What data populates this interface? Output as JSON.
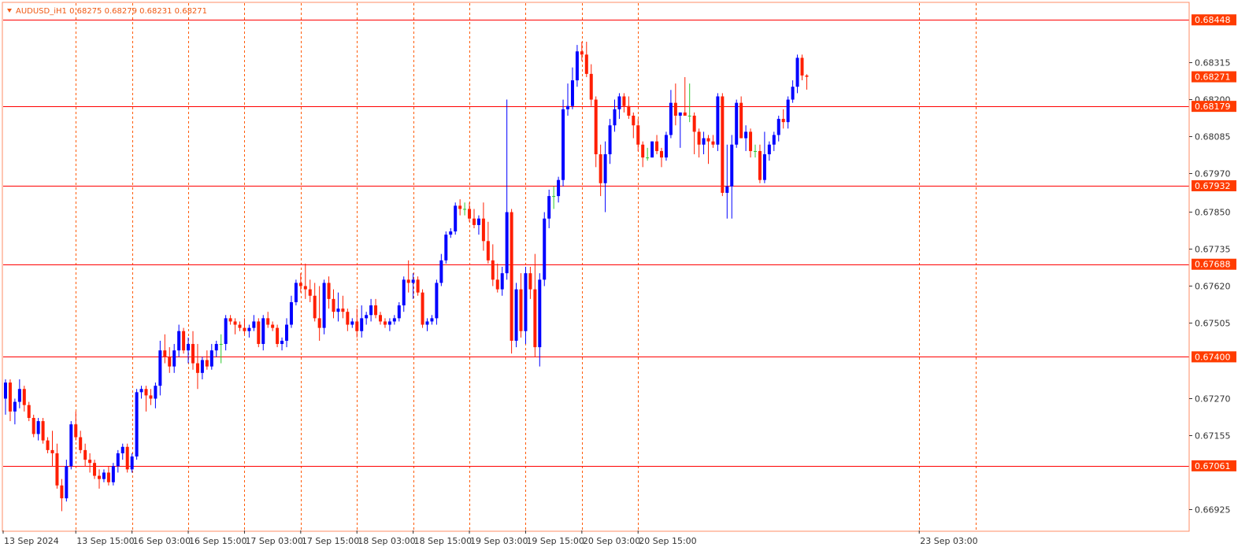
{
  "header": {
    "title": "AUDUSD_iH1  0.68275 0.68279 0.68231 0.68271"
  },
  "colors": {
    "bull": "#0000ff",
    "bear": "#ff1e00",
    "doji": "#2ec82e",
    "grid": "#ff5a00",
    "level": "#ff0000",
    "tag_bg": "#ff3c00",
    "frame": "#ff8c66"
  },
  "chart_data": {
    "type": "candlestick",
    "symbol": "AUDUSD_i",
    "timeframe": "H1",
    "last_bar": {
      "open": 0.68275,
      "high": 0.68279,
      "low": 0.68231,
      "close": 0.68271
    },
    "ylim": [
      0.6686,
      0.685
    ],
    "y_ticks": [
      "0.68315",
      "0.68200",
      "0.68085",
      "0.67970",
      "0.67850",
      "0.67735",
      "0.67620",
      "0.67505",
      "0.67270",
      "0.67155",
      "0.66925"
    ],
    "x_ticks": [
      "13 Sep 2024",
      "13 Sep 15:00",
      "16 Sep 03:00",
      "16 Sep 15:00",
      "17 Sep 03:00",
      "17 Sep 15:00",
      "18 Sep 03:00",
      "18 Sep 15:00",
      "19 Sep 03:00",
      "19 Sep 15:00",
      "20 Sep 03:00",
      "20 Sep 15:00",
      "23 Sep 03:00"
    ],
    "x_gridlines": [
      "13 Sep 15:00",
      "16 Sep 03:00",
      "16 Sep 15:00",
      "17 Sep 03:00",
      "17 Sep 15:00",
      "18 Sep 03:00",
      "18 Sep 15:00",
      "19 Sep 03:00",
      "19 Sep 15:00",
      "20 Sep 03:00",
      "20 Sep 15:00",
      "23 Sep 03:00",
      "23 Sep 15:00"
    ],
    "levels": [
      "0.68448",
      "0.68179",
      "0.67932",
      "0.67688",
      "0.67400",
      "0.67061"
    ],
    "current_price": "0.68271",
    "grid": "vertical dashed",
    "candles": [
      [
        0.6727,
        0.6733,
        0.6722,
        0.6732
      ],
      [
        0.6732,
        0.6733,
        0.672,
        0.6723
      ],
      [
        0.6723,
        0.6727,
        0.6719,
        0.6726
      ],
      [
        0.6726,
        0.6733,
        0.6724,
        0.673
      ],
      [
        0.673,
        0.6731,
        0.6723,
        0.6725
      ],
      [
        0.6725,
        0.6726,
        0.672,
        0.6721
      ],
      [
        0.6721,
        0.6722,
        0.6715,
        0.6716
      ],
      [
        0.6716,
        0.6721,
        0.6714,
        0.672
      ],
      [
        0.672,
        0.6721,
        0.6713,
        0.6714
      ],
      [
        0.6714,
        0.6715,
        0.671,
        0.6711
      ],
      [
        0.6711,
        0.6717,
        0.6706,
        0.671
      ],
      [
        0.671,
        0.6713,
        0.6699,
        0.67
      ],
      [
        0.67,
        0.6702,
        0.6692,
        0.6696
      ],
      [
        0.6696,
        0.6708,
        0.6695,
        0.6706
      ],
      [
        0.6706,
        0.672,
        0.6705,
        0.6719
      ],
      [
        0.6719,
        0.6723,
        0.6714,
        0.6715
      ],
      [
        0.6715,
        0.6717,
        0.671,
        0.6711
      ],
      [
        0.6711,
        0.6713,
        0.6706,
        0.6708
      ],
      [
        0.6708,
        0.671,
        0.6704,
        0.6707
      ],
      [
        0.6707,
        0.6708,
        0.6702,
        0.6703
      ],
      [
        0.6703,
        0.6705,
        0.6699,
        0.6702
      ],
      [
        0.6702,
        0.6705,
        0.6701,
        0.6704
      ],
      [
        0.6704,
        0.6706,
        0.67,
        0.6701
      ],
      [
        0.6701,
        0.6707,
        0.67,
        0.6706
      ],
      [
        0.6706,
        0.6711,
        0.6704,
        0.671
      ],
      [
        0.671,
        0.6713,
        0.6708,
        0.6712
      ],
      [
        0.6712,
        0.6713,
        0.6704,
        0.6705
      ],
      [
        0.6705,
        0.671,
        0.6704,
        0.6709
      ],
      [
        0.6709,
        0.673,
        0.6708,
        0.6729
      ],
      [
        0.6729,
        0.6731,
        0.6727,
        0.673
      ],
      [
        0.673,
        0.6731,
        0.6723,
        0.6728
      ],
      [
        0.6728,
        0.673,
        0.6725,
        0.6727
      ],
      [
        0.6727,
        0.6732,
        0.6724,
        0.6731
      ],
      [
        0.6731,
        0.6745,
        0.6728,
        0.6742
      ],
      [
        0.6742,
        0.6747,
        0.6738,
        0.674
      ],
      [
        0.674,
        0.6743,
        0.6735,
        0.6737
      ],
      [
        0.6737,
        0.6744,
        0.6735,
        0.6742
      ],
      [
        0.6742,
        0.675,
        0.674,
        0.6748
      ],
      [
        0.6748,
        0.6749,
        0.6741,
        0.6742
      ],
      [
        0.6742,
        0.6746,
        0.6738,
        0.6744
      ],
      [
        0.6744,
        0.6748,
        0.6736,
        0.6738
      ],
      [
        0.6738,
        0.6744,
        0.673,
        0.6735
      ],
      [
        0.6735,
        0.674,
        0.6733,
        0.6739
      ],
      [
        0.6739,
        0.6742,
        0.6736,
        0.6737
      ],
      [
        0.6737,
        0.6744,
        0.6736,
        0.6742
      ],
      [
        0.6742,
        0.6745,
        0.674,
        0.6744
      ],
      [
        0.6744,
        0.6747,
        0.6738,
        0.6744
      ],
      [
        0.6744,
        0.6753,
        0.6742,
        0.6752
      ],
      [
        0.6752,
        0.6753,
        0.675,
        0.6751
      ],
      [
        0.6751,
        0.6752,
        0.6747,
        0.675
      ],
      [
        0.675,
        0.6751,
        0.6748,
        0.6749
      ],
      [
        0.6749,
        0.6752,
        0.6747,
        0.6748
      ],
      [
        0.6748,
        0.675,
        0.6746,
        0.6749
      ],
      [
        0.6749,
        0.6753,
        0.6748,
        0.6751
      ],
      [
        0.6751,
        0.6752,
        0.6743,
        0.6744
      ],
      [
        0.6744,
        0.6753,
        0.6742,
        0.6752
      ],
      [
        0.6752,
        0.6754,
        0.6749,
        0.675
      ],
      [
        0.675,
        0.6751,
        0.6748,
        0.6749
      ],
      [
        0.6749,
        0.675,
        0.6743,
        0.6744
      ],
      [
        0.6744,
        0.6746,
        0.6742,
        0.6745
      ],
      [
        0.6745,
        0.6752,
        0.6743,
        0.675
      ],
      [
        0.675,
        0.6759,
        0.6749,
        0.6757
      ],
      [
        0.6757,
        0.6764,
        0.6756,
        0.6763
      ],
      [
        0.6763,
        0.6766,
        0.676,
        0.6762
      ],
      [
        0.6762,
        0.6769,
        0.6758,
        0.6761
      ],
      [
        0.6761,
        0.6764,
        0.6757,
        0.6759
      ],
      [
        0.6759,
        0.6763,
        0.6751,
        0.6752
      ],
      [
        0.6752,
        0.6762,
        0.6745,
        0.6749
      ],
      [
        0.6749,
        0.6764,
        0.6747,
        0.6763
      ],
      [
        0.6763,
        0.6765,
        0.6755,
        0.6758
      ],
      [
        0.6758,
        0.6761,
        0.6752,
        0.6754
      ],
      [
        0.6754,
        0.676,
        0.6751,
        0.6755
      ],
      [
        0.6755,
        0.6759,
        0.6752,
        0.6754
      ],
      [
        0.6754,
        0.6755,
        0.6748,
        0.675
      ],
      [
        0.675,
        0.6752,
        0.6749,
        0.6751
      ],
      [
        0.6751,
        0.6755,
        0.6746,
        0.6748
      ],
      [
        0.6748,
        0.6756,
        0.6746,
        0.6752
      ],
      [
        0.6752,
        0.6754,
        0.675,
        0.6753
      ],
      [
        0.6753,
        0.6758,
        0.6751,
        0.6756
      ],
      [
        0.6756,
        0.6758,
        0.6752,
        0.6753
      ],
      [
        0.6753,
        0.6754,
        0.675,
        0.6751
      ],
      [
        0.6751,
        0.6752,
        0.6749,
        0.675
      ],
      [
        0.675,
        0.6752,
        0.6748,
        0.6751
      ],
      [
        0.6751,
        0.6753,
        0.675,
        0.6752
      ],
      [
        0.6752,
        0.6757,
        0.6751,
        0.6756
      ],
      [
        0.6756,
        0.6765,
        0.6754,
        0.6764
      ],
      [
        0.6764,
        0.677,
        0.676,
        0.6763
      ],
      [
        0.6763,
        0.6766,
        0.6758,
        0.6764
      ],
      [
        0.6764,
        0.6765,
        0.6759,
        0.676
      ],
      [
        0.676,
        0.6761,
        0.6749,
        0.675
      ],
      [
        0.675,
        0.6752,
        0.6748,
        0.6751
      ],
      [
        0.6751,
        0.6753,
        0.675,
        0.6752
      ],
      [
        0.6752,
        0.6764,
        0.675,
        0.6763
      ],
      [
        0.6763,
        0.6772,
        0.6762,
        0.677
      ],
      [
        0.677,
        0.6779,
        0.6769,
        0.6778
      ],
      [
        0.6778,
        0.678,
        0.6777,
        0.6779
      ],
      [
        0.6779,
        0.6788,
        0.6778,
        0.6787
      ],
      [
        0.6787,
        0.6789,
        0.6784,
        0.6786
      ],
      [
        0.6786,
        0.6788,
        0.6784,
        0.6786
      ],
      [
        0.6786,
        0.6788,
        0.6782,
        0.6783
      ],
      [
        0.6783,
        0.6786,
        0.678,
        0.6781
      ],
      [
        0.6781,
        0.6784,
        0.6778,
        0.6783
      ],
      [
        0.6783,
        0.6788,
        0.6773,
        0.6776
      ],
      [
        0.6776,
        0.6782,
        0.6769,
        0.677
      ],
      [
        0.677,
        0.6775,
        0.6762,
        0.6764
      ],
      [
        0.6764,
        0.6769,
        0.676,
        0.6761
      ],
      [
        0.6761,
        0.6768,
        0.6759,
        0.6766
      ],
      [
        0.6766,
        0.682,
        0.6764,
        0.6785
      ],
      [
        0.6785,
        0.6786,
        0.6741,
        0.6745
      ],
      [
        0.6745,
        0.6763,
        0.6743,
        0.6761
      ],
      [
        0.6761,
        0.6766,
        0.6746,
        0.6748
      ],
      [
        0.6748,
        0.6768,
        0.6744,
        0.6766
      ],
      [
        0.6766,
        0.6768,
        0.6758,
        0.6761
      ],
      [
        0.6761,
        0.6772,
        0.674,
        0.6743
      ],
      [
        0.6743,
        0.6766,
        0.6737,
        0.6764
      ],
      [
        0.6764,
        0.6785,
        0.6762,
        0.6783
      ],
      [
        0.6783,
        0.6792,
        0.678,
        0.679
      ],
      [
        0.679,
        0.6793,
        0.6786,
        0.679
      ],
      [
        0.679,
        0.6796,
        0.6788,
        0.6795
      ],
      [
        0.6795,
        0.682,
        0.6793,
        0.6817
      ],
      [
        0.6817,
        0.6825,
        0.6815,
        0.6818
      ],
      [
        0.6818,
        0.683,
        0.6817,
        0.6826
      ],
      [
        0.6826,
        0.6837,
        0.6824,
        0.6835
      ],
      [
        0.6835,
        0.6838,
        0.6832,
        0.6834
      ],
      [
        0.6834,
        0.6838,
        0.6827,
        0.6828
      ],
      [
        0.6828,
        0.6831,
        0.6818,
        0.682
      ],
      [
        0.682,
        0.6821,
        0.6799,
        0.6803
      ],
      [
        0.6803,
        0.6806,
        0.679,
        0.6794
      ],
      [
        0.6794,
        0.6807,
        0.6785,
        0.6803
      ],
      [
        0.6803,
        0.6814,
        0.68,
        0.6812
      ],
      [
        0.6812,
        0.682,
        0.681,
        0.6817
      ],
      [
        0.6817,
        0.6822,
        0.6814,
        0.6821
      ],
      [
        0.6821,
        0.6822,
        0.6816,
        0.6818
      ],
      [
        0.6818,
        0.6821,
        0.6814,
        0.6815
      ],
      [
        0.6815,
        0.6816,
        0.6808,
        0.6812
      ],
      [
        0.6812,
        0.6814,
        0.6804,
        0.6806
      ],
      [
        0.6806,
        0.6807,
        0.6799,
        0.6802
      ],
      [
        0.6802,
        0.6805,
        0.6801,
        0.6802
      ],
      [
        0.6802,
        0.6807,
        0.6802,
        0.6807
      ],
      [
        0.6807,
        0.6809,
        0.6803,
        0.6804
      ],
      [
        0.6804,
        0.6805,
        0.6799,
        0.6802
      ],
      [
        0.6802,
        0.681,
        0.6801,
        0.6809
      ],
      [
        0.6809,
        0.6823,
        0.6808,
        0.6819
      ],
      [
        0.6819,
        0.6825,
        0.6812,
        0.6815
      ],
      [
        0.6815,
        0.6816,
        0.6805,
        0.6816
      ],
      [
        0.6816,
        0.6827,
        0.6815,
        0.6815
      ],
      [
        0.6815,
        0.6825,
        0.6813,
        0.6815
      ],
      [
        0.6815,
        0.6816,
        0.6803,
        0.681
      ],
      [
        0.681,
        0.6811,
        0.6802,
        0.6806
      ],
      [
        0.6806,
        0.681,
        0.6803,
        0.6808
      ],
      [
        0.6808,
        0.6809,
        0.68,
        0.6807
      ],
      [
        0.6807,
        0.6809,
        0.6805,
        0.6806
      ],
      [
        0.6806,
        0.6822,
        0.6804,
        0.6821
      ],
      [
        0.6821,
        0.6822,
        0.679,
        0.6791
      ],
      [
        0.6791,
        0.6806,
        0.6783,
        0.6793
      ],
      [
        0.6793,
        0.6809,
        0.6783,
        0.6806
      ],
      [
        0.6806,
        0.682,
        0.6805,
        0.6819
      ],
      [
        0.6819,
        0.6821,
        0.6808,
        0.6808
      ],
      [
        0.6808,
        0.6812,
        0.6804,
        0.681
      ],
      [
        0.681,
        0.6811,
        0.6802,
        0.6804
      ],
      [
        0.6804,
        0.6806,
        0.6802,
        0.6804
      ],
      [
        0.6804,
        0.6806,
        0.6794,
        0.6795
      ],
      [
        0.6795,
        0.681,
        0.6794,
        0.6803
      ],
      [
        0.6803,
        0.6807,
        0.6801,
        0.6806
      ],
      [
        0.6806,
        0.681,
        0.6804,
        0.6809
      ],
      [
        0.6809,
        0.6815,
        0.6807,
        0.6814
      ],
      [
        0.6814,
        0.6817,
        0.6811,
        0.6813
      ],
      [
        0.6813,
        0.6821,
        0.6811,
        0.682
      ],
      [
        0.682,
        0.6826,
        0.6819,
        0.6824
      ],
      [
        0.6824,
        0.6834,
        0.6822,
        0.6833
      ],
      [
        0.6833,
        0.6834,
        0.6826,
        0.68275
      ],
      [
        0.68275,
        0.68279,
        0.68231,
        0.68271
      ]
    ]
  }
}
